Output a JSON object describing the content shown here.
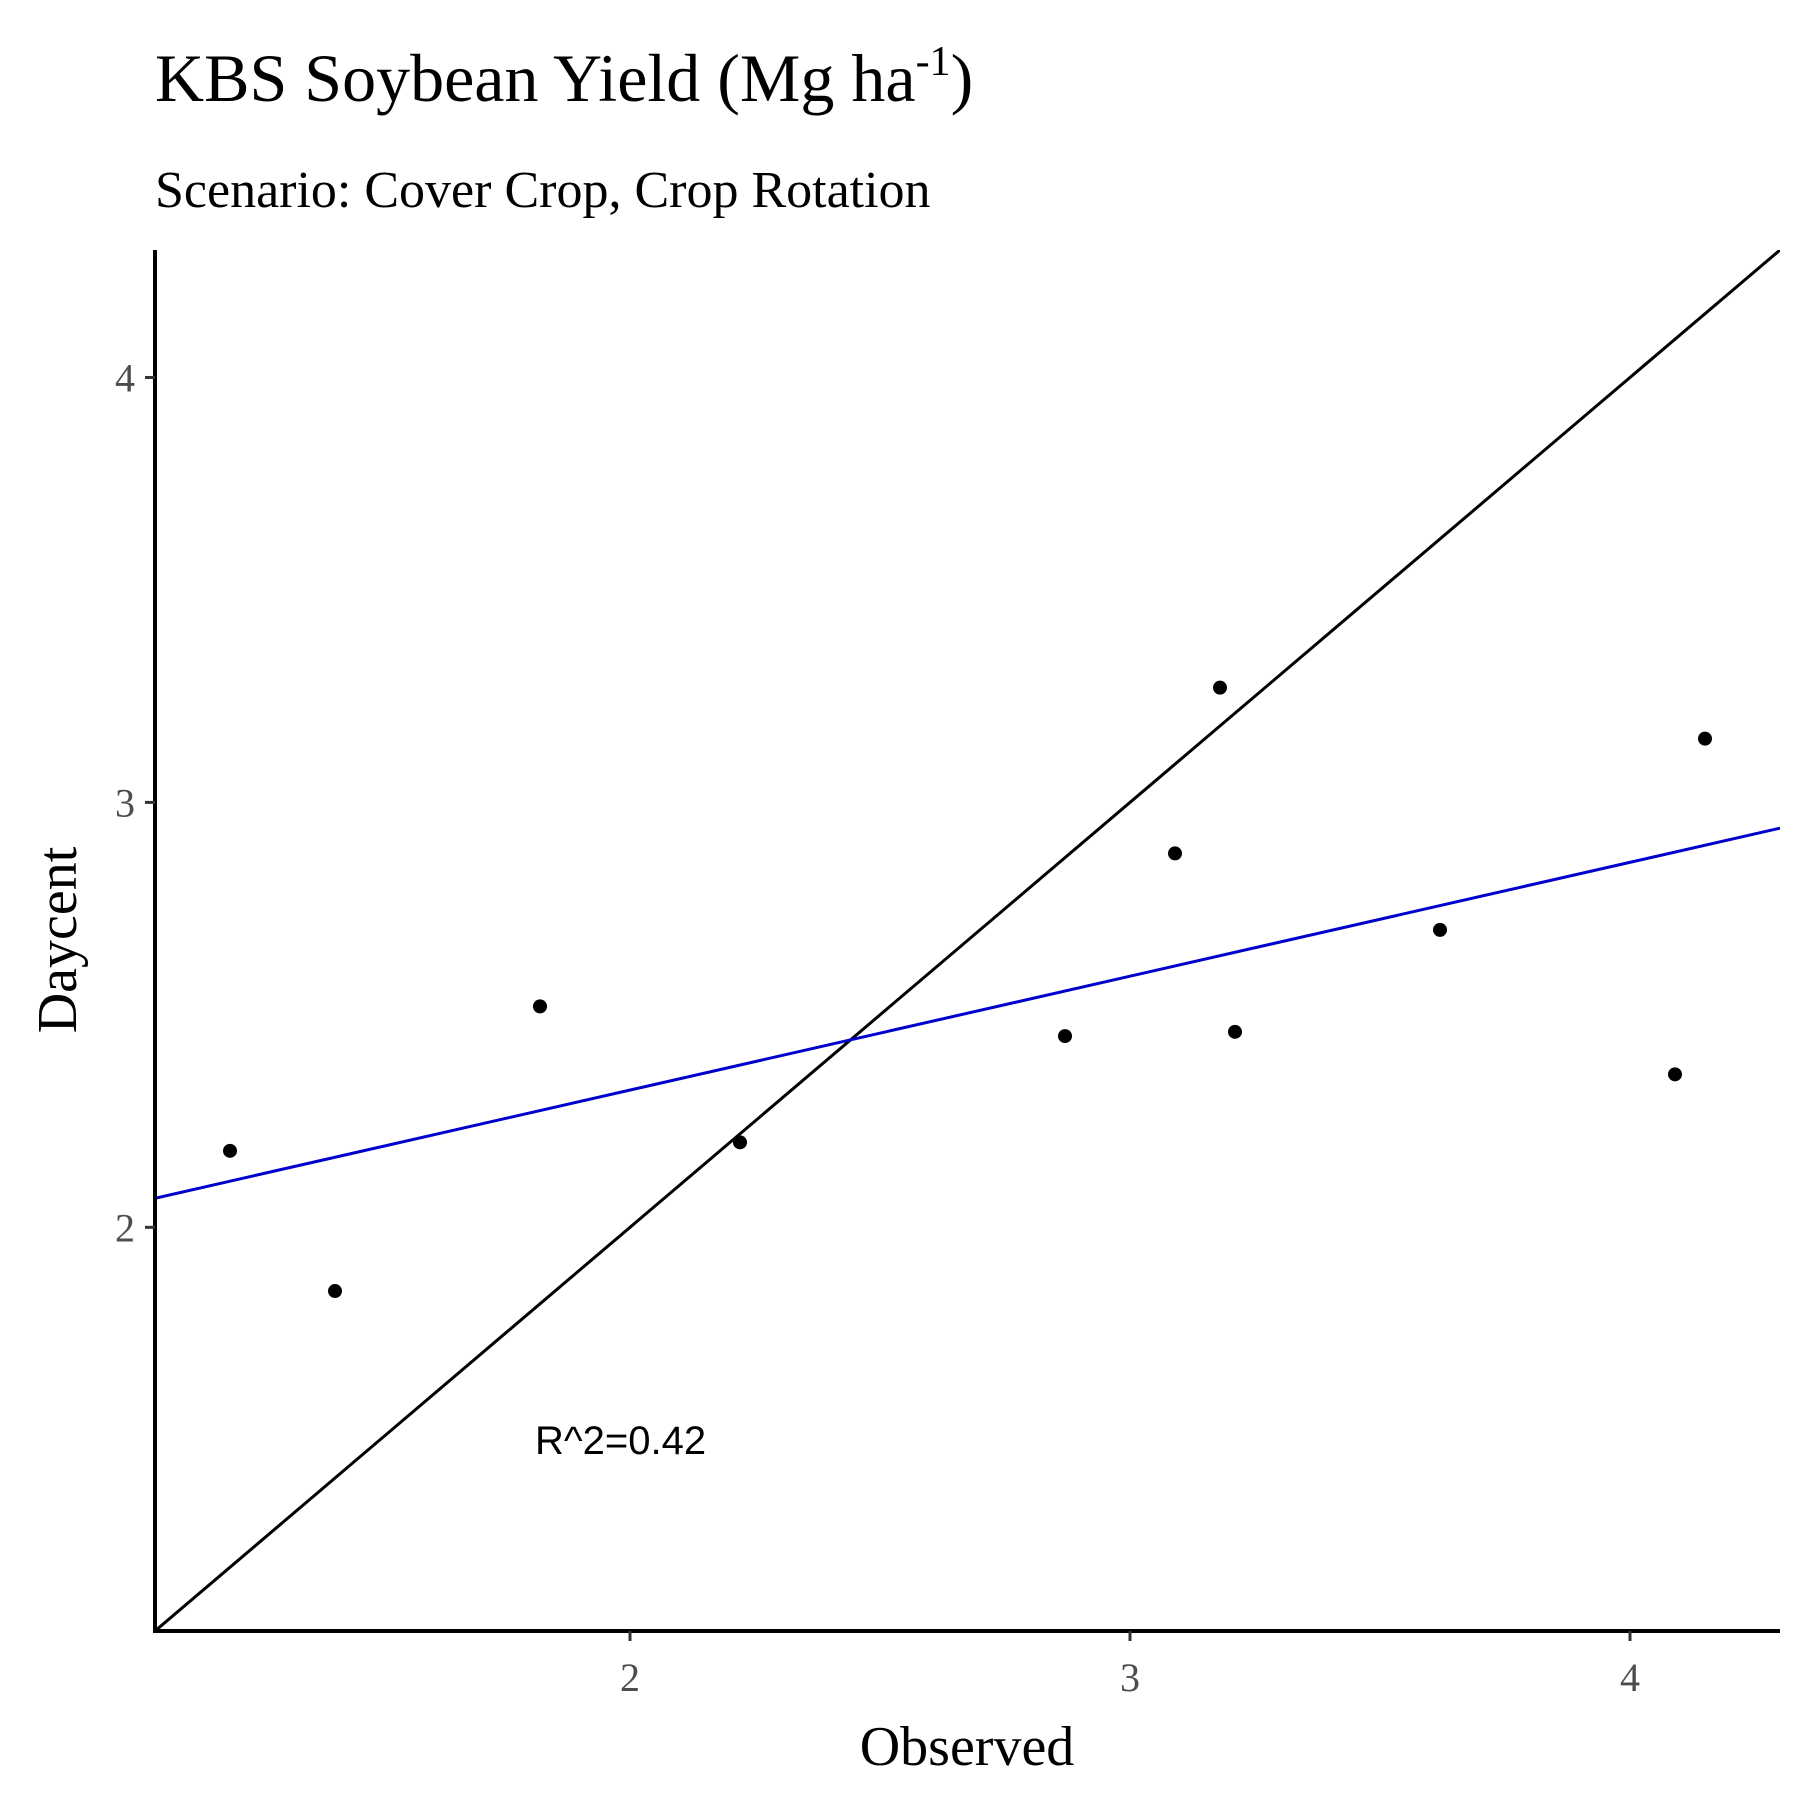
{
  "chart_data": {
    "type": "scatter",
    "title_main": "KBS Soybean Yield (Mg ha",
    "title_sup": "-1",
    "title_end": ")",
    "subtitle": "Scenario: Cover Crop, Crop Rotation",
    "xlabel": "Observed",
    "ylabel": "Daycent",
    "xlim": [
      1.05,
      4.3
    ],
    "ylim": [
      1.05,
      4.3
    ],
    "x_ticks": [
      2,
      3,
      4
    ],
    "x_tick_labels": [
      "2",
      "3",
      "4"
    ],
    "y_ticks": [
      2,
      3,
      4
    ],
    "y_tick_labels": [
      "2",
      "3",
      "4"
    ],
    "grid": false,
    "points": [
      {
        "x": 1.2,
        "y": 2.18
      },
      {
        "x": 1.41,
        "y": 1.85
      },
      {
        "x": 1.82,
        "y": 2.52
      },
      {
        "x": 2.22,
        "y": 2.2
      },
      {
        "x": 2.87,
        "y": 2.45
      },
      {
        "x": 3.09,
        "y": 2.88
      },
      {
        "x": 3.18,
        "y": 3.27
      },
      {
        "x": 3.21,
        "y": 2.46
      },
      {
        "x": 3.62,
        "y": 2.7
      },
      {
        "x": 4.09,
        "y": 2.36
      },
      {
        "x": 4.15,
        "y": 3.15
      }
    ],
    "identity_line": {
      "slope": 1,
      "intercept": 0,
      "color": "#000000"
    },
    "regression_line": {
      "slope": 0.268,
      "intercept": 1.787,
      "color": "#0000cc"
    },
    "point_color": "#000000",
    "annotation": {
      "text": "R^2=0.42",
      "x": 1.82,
      "y": 1.5
    }
  }
}
